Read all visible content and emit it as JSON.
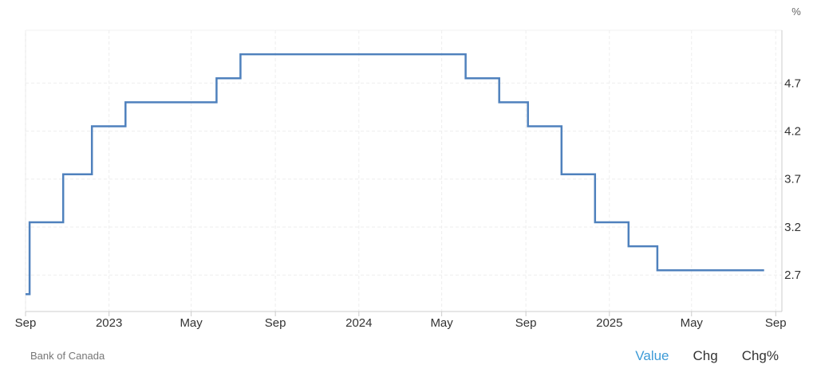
{
  "chart_data": {
    "type": "line",
    "step": true,
    "unit_label": "%",
    "y_ticks": [
      2.7,
      3.2,
      3.7,
      4.2,
      4.7
    ],
    "ylim": [
      2.32,
      5.25
    ],
    "xlim": [
      "2022-09-01",
      "2025-09-10"
    ],
    "x_ticks": [
      {
        "date": "2022-09-01",
        "label": "Sep"
      },
      {
        "date": "2023-01-01",
        "label": "2023"
      },
      {
        "date": "2023-05-01",
        "label": "May"
      },
      {
        "date": "2023-09-01",
        "label": "Sep"
      },
      {
        "date": "2024-01-01",
        "label": "2024"
      },
      {
        "date": "2024-05-01",
        "label": "May"
      },
      {
        "date": "2024-09-01",
        "label": "Sep"
      },
      {
        "date": "2025-01-01",
        "label": "2025"
      },
      {
        "date": "2025-05-01",
        "label": "May"
      },
      {
        "date": "2025-09-01",
        "label": "Sep"
      }
    ],
    "grid": true,
    "line_color": "#4f81bd",
    "series": [
      {
        "points": [
          {
            "date": "2022-08-01",
            "value": 2.5
          },
          {
            "date": "2022-09-07",
            "value": 3.25
          },
          {
            "date": "2022-10-26",
            "value": 3.75
          },
          {
            "date": "2022-12-07",
            "value": 4.25
          },
          {
            "date": "2023-01-25",
            "value": 4.5
          },
          {
            "date": "2023-06-07",
            "value": 4.75
          },
          {
            "date": "2023-07-12",
            "value": 5.0
          },
          {
            "date": "2024-06-05",
            "value": 4.75
          },
          {
            "date": "2024-07-24",
            "value": 4.5
          },
          {
            "date": "2024-09-04",
            "value": 4.25
          },
          {
            "date": "2024-10-23",
            "value": 3.75
          },
          {
            "date": "2024-12-11",
            "value": 3.25
          },
          {
            "date": "2025-01-29",
            "value": 3.0
          },
          {
            "date": "2025-03-12",
            "value": 2.75
          },
          {
            "date": "2025-08-15",
            "value": 2.75
          }
        ]
      }
    ]
  },
  "footer": {
    "source": "Bank of Canada",
    "tabs": [
      {
        "label": "Value",
        "active": true
      },
      {
        "label": "Chg",
        "active": false
      },
      {
        "label": "Chg%",
        "active": false
      }
    ]
  }
}
